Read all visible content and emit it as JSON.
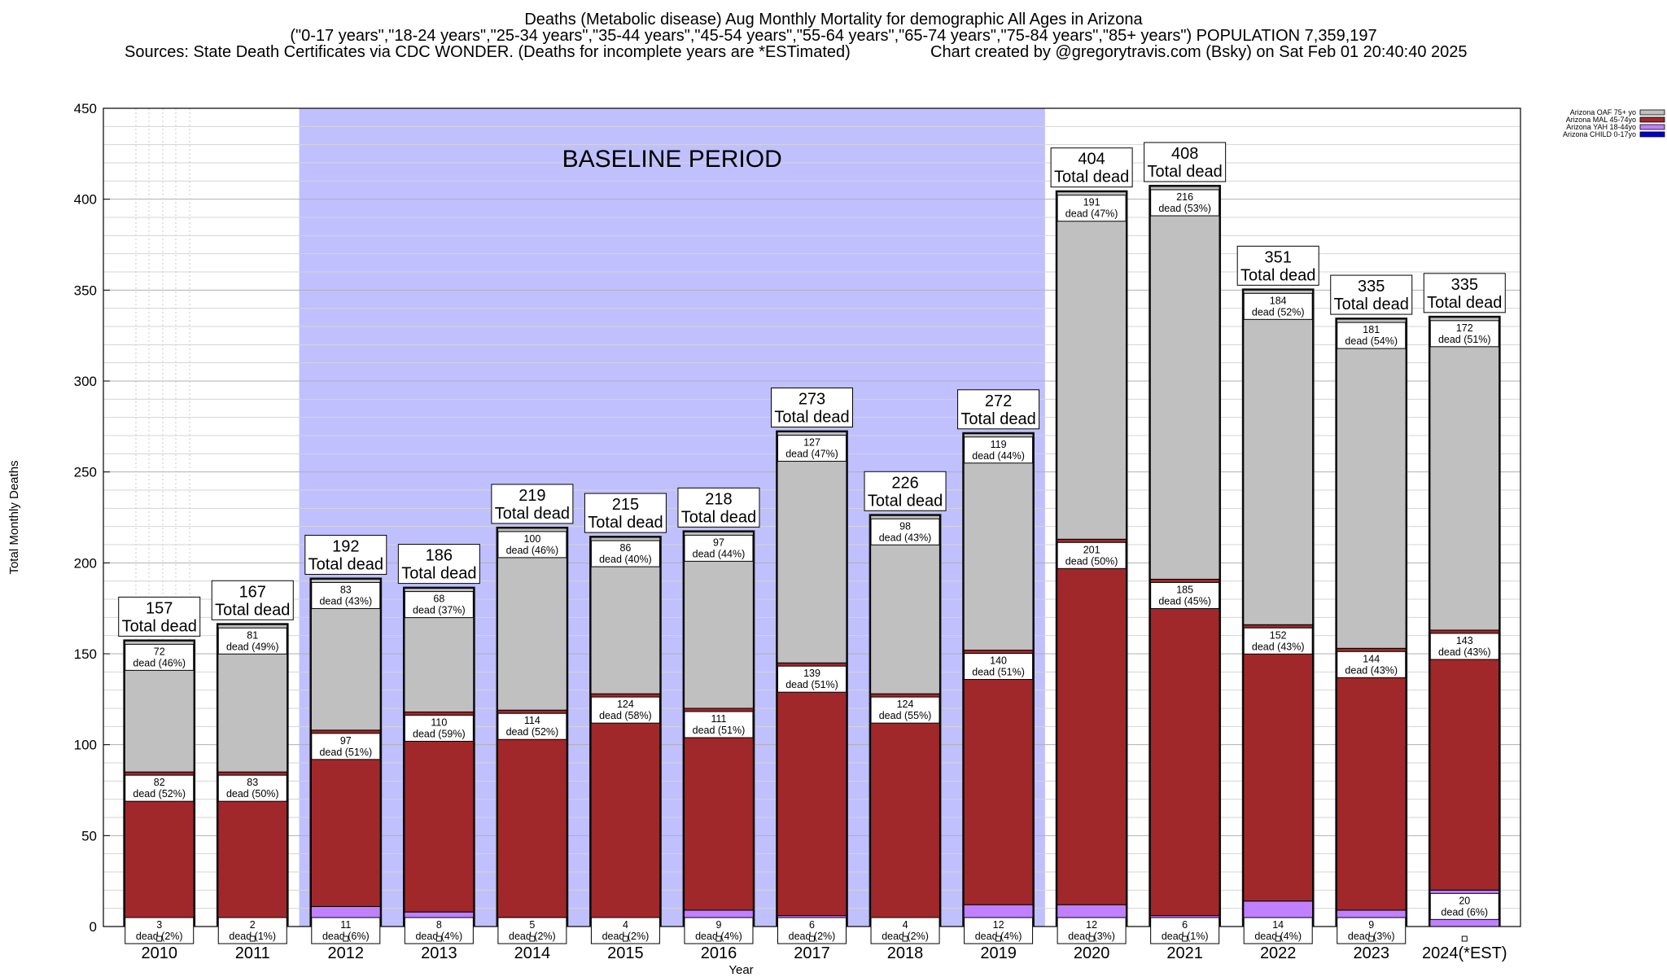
{
  "header": {
    "line1": "Deaths (Metabolic disease) Aug Monthly Mortality for demographic All Ages in Arizona",
    "line2": "(\"0-17 years\",\"18-24 years\",\"25-34 years\",\"35-44 years\",\"45-54 years\",\"55-64 years\",\"65-74 years\",\"75-84 years\",\"85+ years\") POPULATION 7,359,197",
    "sources": "Sources: State Death Certificates via CDC WONDER. (Deaths for incomplete years are *ESTimated)",
    "credit": "Chart created by @gregorytravis.com (Bsky) on Sat Feb 01 20:40:40 2025"
  },
  "chart_data": {
    "type": "bar",
    "stacked": true,
    "xlabel": "Year",
    "ylabel": "Total Monthly Deaths",
    "ylim": [
      0,
      450
    ],
    "yticks": [
      0,
      50,
      100,
      150,
      200,
      250,
      300,
      350,
      400,
      450
    ],
    "grid": true,
    "legend_position": "top-right",
    "baseline_label": "BASELINE PERIOD",
    "baseline_range": [
      "2012",
      "2019"
    ],
    "total_suffix": "Total dead",
    "dead_word": "dead",
    "categories": [
      "2010",
      "2011",
      "2012",
      "2013",
      "2014",
      "2015",
      "2016",
      "2017",
      "2018",
      "2019",
      "2020",
      "2021",
      "2022",
      "2023",
      "2024(*EST)"
    ],
    "totals": [
      157,
      167,
      192,
      186,
      219,
      215,
      218,
      273,
      226,
      272,
      404,
      408,
      351,
      335,
      335
    ],
    "series": [
      {
        "name": "Arizona CHILD 0-17yo",
        "color": "#0000cc",
        "values": [
          0,
          0,
          0,
          0,
          0,
          0,
          0,
          0,
          0,
          0,
          0,
          0,
          0,
          0,
          0
        ]
      },
      {
        "name": "Arizona YAH 18-44yo",
        "color": "#c080ff",
        "values": [
          3,
          2,
          11,
          8,
          5,
          4,
          9,
          6,
          4,
          12,
          12,
          6,
          14,
          9,
          20
        ],
        "pct": [
          "2%",
          "1%",
          "6%",
          "4%",
          "2%",
          "2%",
          "4%",
          "2%",
          "2%",
          "4%",
          "3%",
          "1%",
          "4%",
          "3%",
          "6%"
        ]
      },
      {
        "name": "Arizona MAL 45-74yo",
        "color": "#a0282a",
        "values": [
          82,
          83,
          97,
          110,
          114,
          124,
          111,
          139,
          124,
          140,
          201,
          185,
          152,
          144,
          143
        ],
        "pct": [
          "52%",
          "50%",
          "51%",
          "59%",
          "52%",
          "58%",
          "51%",
          "51%",
          "55%",
          "51%",
          "50%",
          "45%",
          "43%",
          "43%",
          "43%"
        ]
      },
      {
        "name": "Arizona OAF 75+ yo",
        "color": "#c0c0c0",
        "values": [
          72,
          81,
          83,
          68,
          100,
          86,
          97,
          127,
          98,
          119,
          191,
          216,
          184,
          181,
          172
        ],
        "pct": [
          "46%",
          "49%",
          "43%",
          "37%",
          "46%",
          "40%",
          "44%",
          "47%",
          "43%",
          "44%",
          "47%",
          "53%",
          "52%",
          "54%",
          "51%"
        ]
      }
    ]
  }
}
